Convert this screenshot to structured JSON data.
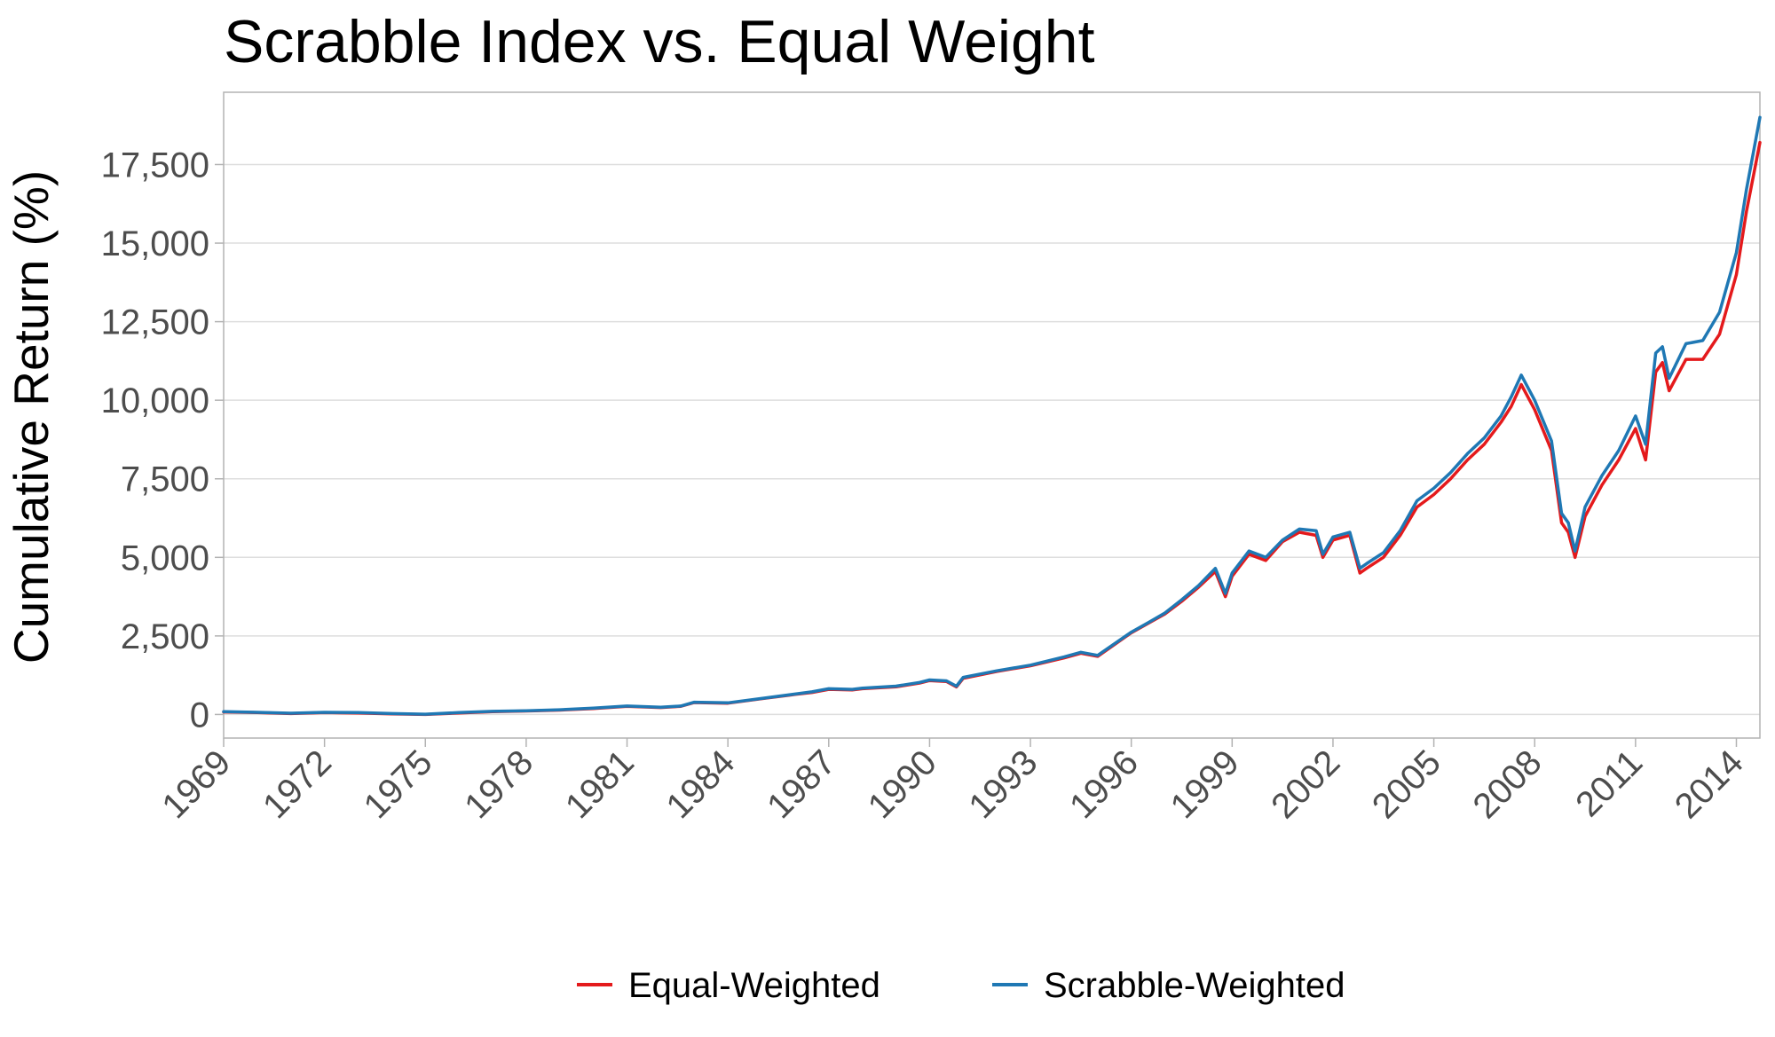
{
  "chart_data": {
    "type": "line",
    "title": "Scrabble Index vs. Equal Weight",
    "xlabel": "",
    "ylabel": "Cumulative Return (%)",
    "xlim": [
      1969,
      2014.7
    ],
    "ylim": [
      -750,
      19800
    ],
    "x_ticks": [
      1969,
      1972,
      1975,
      1978,
      1981,
      1984,
      1987,
      1990,
      1993,
      1996,
      1999,
      2002,
      2005,
      2008,
      2011,
      2014
    ],
    "x_tick_labels": [
      "1969",
      "1972",
      "1975",
      "1978",
      "1981",
      "1984",
      "1987",
      "1990",
      "1993",
      "1996",
      "1999",
      "2002",
      "2005",
      "2008",
      "2011",
      "2014"
    ],
    "y_ticks": [
      0,
      2500,
      5000,
      7500,
      10000,
      12500,
      15000,
      17500
    ],
    "y_tick_labels": [
      "0",
      "2,500",
      "5,000",
      "7,500",
      "10,000",
      "12,500",
      "15,000",
      "17,500"
    ],
    "grid": true,
    "legend_position": "bottom",
    "series": [
      {
        "name": "Equal-Weighted",
        "color": "#e41a1c",
        "x": [
          1969,
          1970,
          1971,
          1972,
          1973,
          1974,
          1975,
          1976,
          1977,
          1978,
          1979,
          1980,
          1981,
          1982,
          1982.6,
          1983,
          1984,
          1985,
          1986,
          1986.5,
          1987,
          1987.7,
          1988,
          1989,
          1989.7,
          1990,
          1990.5,
          1990.8,
          1991,
          1992,
          1993,
          1994,
          1994.5,
          1995,
          1996,
          1996.5,
          1997,
          1997.5,
          1998,
          1998.5,
          1998.8,
          1999,
          1999.5,
          2000,
          2000.5,
          2001,
          2001.5,
          2001.7,
          2002,
          2002.5,
          2002.8,
          2003,
          2003.5,
          2004,
          2004.5,
          2005,
          2005.5,
          2006,
          2006.5,
          2007,
          2007.3,
          2007.6,
          2008,
          2008.5,
          2008.8,
          2009,
          2009.2,
          2009.5,
          2010,
          2010.5,
          2011,
          2011.3,
          2011.6,
          2011.8,
          2012,
          2012.5,
          2013,
          2013.5,
          2014,
          2014.3,
          2014.7
        ],
        "y": [
          80,
          60,
          30,
          60,
          50,
          20,
          0,
          50,
          90,
          110,
          140,
          190,
          260,
          220,
          260,
          380,
          360,
          500,
          640,
          700,
          800,
          780,
          820,
          880,
          1000,
          1080,
          1050,
          880,
          1150,
          1370,
          1550,
          1800,
          1950,
          1850,
          2600,
          2900,
          3200,
          3600,
          4050,
          4550,
          3750,
          4400,
          5100,
          4900,
          5500,
          5800,
          5700,
          5000,
          5550,
          5700,
          4500,
          4650,
          5000,
          5700,
          6600,
          7000,
          7500,
          8100,
          8600,
          9300,
          9800,
          10500,
          9700,
          8400,
          6100,
          5800,
          5000,
          6300,
          7300,
          8100,
          9100,
          8100,
          10900,
          11200,
          10300,
          11300,
          11300,
          12100,
          14000,
          16000,
          18200
        ]
      },
      {
        "name": "Scrabble-Weighted",
        "color": "#1f78b4",
        "x": [
          1969,
          1970,
          1971,
          1972,
          1973,
          1974,
          1975,
          1976,
          1977,
          1978,
          1979,
          1980,
          1981,
          1982,
          1982.6,
          1983,
          1984,
          1985,
          1986,
          1986.5,
          1987,
          1987.7,
          1988,
          1989,
          1989.7,
          1990,
          1990.5,
          1990.8,
          1991,
          1992,
          1993,
          1994,
          1994.5,
          1995,
          1996,
          1996.5,
          1997,
          1997.5,
          1998,
          1998.5,
          1998.8,
          1999,
          1999.5,
          2000,
          2000.5,
          2001,
          2001.5,
          2001.7,
          2002,
          2002.5,
          2002.8,
          2003,
          2003.5,
          2004,
          2004.5,
          2005,
          2005.5,
          2006,
          2006.5,
          2007,
          2007.3,
          2007.6,
          2008,
          2008.5,
          2008.8,
          2009,
          2009.2,
          2009.5,
          2010,
          2010.5,
          2011,
          2011.3,
          2011.6,
          2011.8,
          2012,
          2012.5,
          2013,
          2013.5,
          2014,
          2014.3,
          2014.7
        ],
        "y": [
          90,
          70,
          40,
          70,
          60,
          30,
          10,
          60,
          100,
          120,
          150,
          200,
          270,
          230,
          270,
          390,
          370,
          510,
          650,
          720,
          820,
          800,
          840,
          900,
          1020,
          1100,
          1070,
          900,
          1180,
          1390,
          1570,
          1830,
          1980,
          1880,
          2620,
          2920,
          3230,
          3650,
          4100,
          4650,
          3850,
          4500,
          5200,
          5000,
          5550,
          5900,
          5850,
          5100,
          5650,
          5800,
          4650,
          4800,
          5150,
          5850,
          6800,
          7200,
          7700,
          8300,
          8800,
          9500,
          10100,
          10800,
          10000,
          8700,
          6400,
          6100,
          5200,
          6600,
          7600,
          8400,
          9500,
          8600,
          11500,
          11700,
          10700,
          11800,
          11900,
          12800,
          14700,
          16700,
          19000
        ]
      }
    ]
  }
}
